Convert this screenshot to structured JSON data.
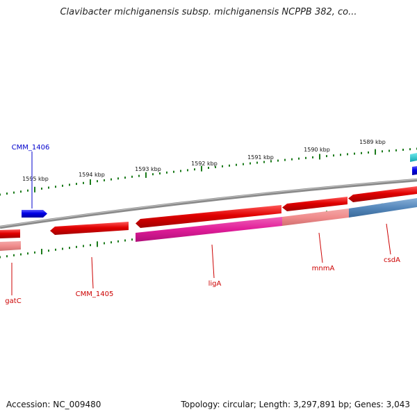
{
  "title": "Clavibacter michiganensis subsp. michiganensis NCPPB 382, co...",
  "footer": {
    "accession": "Accession: NC_009480",
    "summary": "Topology: circular; Length: 3,297,891 bp; Genes: 3,043"
  },
  "scale": {
    "tick_labels": [
      "1595 kbp",
      "1594 kbp",
      "1593 kbp",
      "1592 kbp",
      "1591 kbp",
      "1590 kbp",
      "1589 kbp"
    ]
  },
  "genes": [
    {
      "name": "CMM_1406",
      "strand": "forward",
      "color": "#0000ee"
    },
    {
      "name": "gatC",
      "strand": "reverse",
      "color": "#dd0000"
    },
    {
      "name": "CMM_1405",
      "strand": "reverse",
      "color": "#dd0000"
    },
    {
      "name": "ligA",
      "strand": "reverse",
      "color": "#dd0000"
    },
    {
      "name": "mnmA",
      "strand": "reverse",
      "color": "#dd0000"
    },
    {
      "name": "csdA",
      "strand": "reverse",
      "color": "#dd0000"
    }
  ],
  "colors": {
    "backbone": "#8a8a8a",
    "scale_ticks": "#1a7a1a",
    "forward_gene": "#0000ee",
    "reverse_gene": "#dd0000",
    "label_forward": "#0000cc",
    "label_reverse": "#cc0000",
    "cog_pink": "#f09090",
    "cog_magenta": "#e0209a",
    "cog_steelblue": "#5a8cbf",
    "edge_cyan": "#20c8d0"
  }
}
